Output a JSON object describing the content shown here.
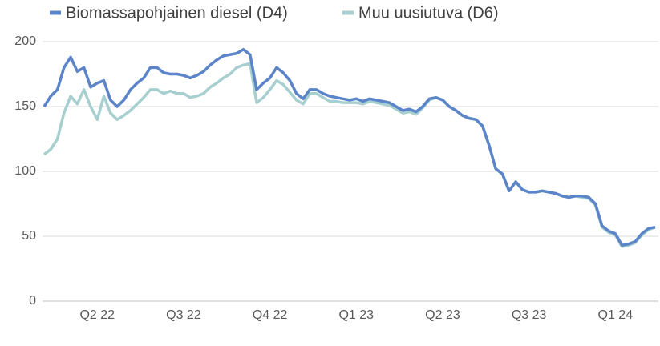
{
  "chart_data": {
    "type": "line",
    "categories": [
      null,
      null,
      null,
      null,
      null,
      null,
      null,
      null,
      "Q2 22",
      null,
      null,
      null,
      null,
      null,
      null,
      null,
      null,
      null,
      null,
      null,
      null,
      "Q3 22",
      null,
      null,
      null,
      null,
      null,
      null,
      null,
      null,
      null,
      null,
      null,
      null,
      "Q4 22",
      null,
      null,
      null,
      null,
      null,
      null,
      null,
      null,
      null,
      null,
      null,
      null,
      "Q1 23",
      null,
      null,
      null,
      null,
      null,
      null,
      null,
      null,
      null,
      null,
      null,
      null,
      "Q2 23",
      null,
      null,
      null,
      null,
      null,
      null,
      null,
      null,
      null,
      null,
      null,
      null,
      "Q3 23",
      null,
      null,
      null,
      null,
      null,
      null,
      null,
      null,
      null,
      null,
      null,
      null,
      "Q1 24",
      null,
      null,
      null,
      null,
      null,
      null
    ],
    "series": [
      {
        "name": "Biomassapohjainen diesel (D4)",
        "color": "#5b84c9",
        "values": [
          150,
          158,
          163,
          180,
          188,
          177,
          180,
          165,
          168,
          170,
          155,
          150,
          155,
          163,
          168,
          172,
          180,
          180,
          176,
          175,
          175,
          174,
          172,
          174,
          177,
          182,
          186,
          189,
          190,
          191,
          194,
          190,
          163,
          168,
          172,
          180,
          176,
          170,
          160,
          156,
          163,
          163,
          160,
          158,
          157,
          156,
          155,
          156,
          154,
          156,
          155,
          154,
          153,
          150,
          147,
          148,
          146,
          150,
          156,
          157,
          155,
          150,
          147,
          143,
          141,
          140,
          135,
          120,
          102,
          98,
          85,
          92,
          86,
          84,
          84,
          85,
          84,
          83,
          81,
          80,
          81,
          81,
          80,
          75,
          58,
          54,
          52,
          43,
          44,
          46,
          52,
          56,
          57
        ]
      },
      {
        "name": "Muu uusiutuva (D6)",
        "color": "#a7cfcf",
        "values": [
          113,
          117,
          125,
          145,
          158,
          152,
          163,
          150,
          140,
          158,
          145,
          140,
          143,
          147,
          152,
          157,
          163,
          163,
          160,
          162,
          160,
          160,
          157,
          158,
          160,
          165,
          168,
          172,
          175,
          180,
          182,
          183,
          153,
          157,
          163,
          170,
          167,
          161,
          155,
          152,
          160,
          160,
          157,
          154,
          154,
          153,
          153,
          153,
          152,
          154,
          153,
          152,
          151,
          148,
          145,
          146,
          144,
          149,
          155,
          157,
          155,
          150,
          147,
          143,
          141,
          140,
          135,
          120,
          102,
          98,
          85,
          92,
          86,
          84,
          84,
          85,
          84,
          83,
          81,
          80,
          81,
          80,
          79,
          74,
          57,
          53,
          51,
          42,
          43,
          45,
          51,
          55,
          57
        ]
      }
    ],
    "ylim": [
      0,
      200
    ],
    "yticks": [
      0,
      50,
      100,
      150,
      200
    ],
    "grid": true,
    "legend": "top"
  }
}
